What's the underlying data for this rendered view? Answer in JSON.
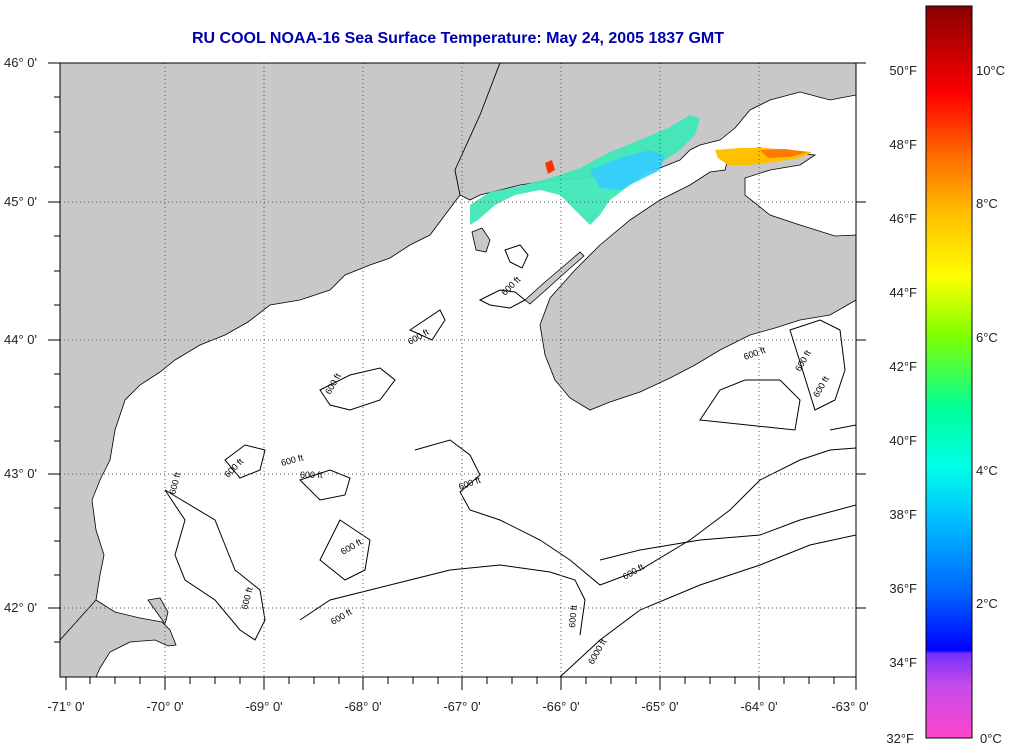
{
  "title": "RU COOL  NOAA-16  Sea Surface Temperature:  May 24, 2005 1837 GMT",
  "map": {
    "lon_range": [
      -71,
      -63
    ],
    "lat_range": [
      41.5,
      46.0
    ],
    "lon_ticks": [
      "-71° 0'",
      "-70° 0'",
      "-69° 0'",
      "-68° 0'",
      "-67° 0'",
      "-66° 0'",
      "-65° 0'",
      "-64° 0'",
      "-63° 0'"
    ],
    "lat_ticks": [
      "46° 0'",
      "45° 0'",
      "44° 0'",
      "43° 0'",
      "42° 0'"
    ],
    "land_color": "#c8c8c8",
    "ocean_color": "#ffffff",
    "contour_label": "600 ft",
    "contour_label_deep": "6000 ft"
  },
  "colorbar": {
    "fahrenheit_labels": [
      "50°F",
      "48°F",
      "46°F",
      "44°F",
      "42°F",
      "40°F",
      "38°F",
      "36°F",
      "34°F",
      "32°F"
    ],
    "celsius_labels": [
      "10°C",
      "8°C",
      "6°C",
      "4°C",
      "2°C",
      "0°C"
    ],
    "fahrenheit_values": [
      50,
      48,
      46,
      44,
      42,
      40,
      38,
      36,
      34,
      32
    ],
    "celsius_values": [
      10,
      8,
      6,
      4,
      2,
      0
    ],
    "range_c": [
      0,
      11.3
    ]
  },
  "colors": {
    "title": "#0000aa",
    "grid": "#555555"
  }
}
